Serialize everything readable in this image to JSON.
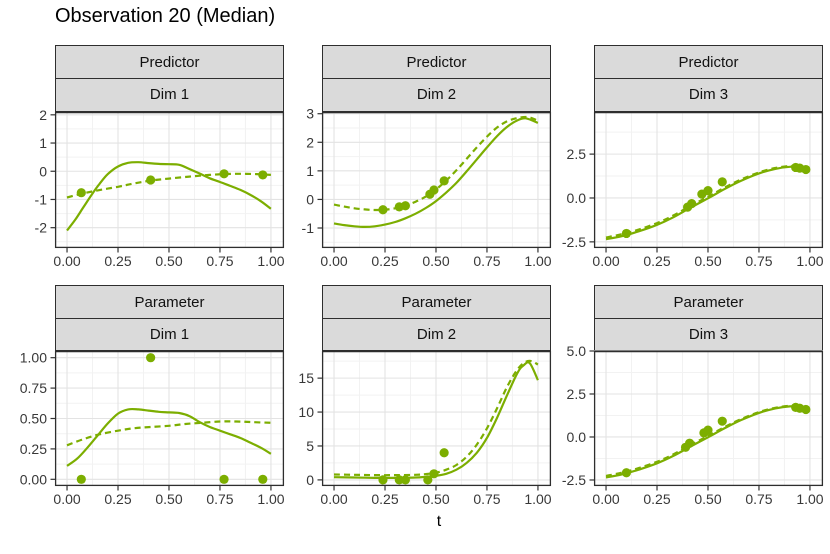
{
  "title": "Observation 20 (Median)",
  "x_axis": {
    "label": "t",
    "tick_values": [
      0,
      0.25,
      0.5,
      0.75,
      1
    ],
    "tick_labels": [
      "0.00",
      "0.25",
      "0.50",
      "0.75",
      "1.00"
    ],
    "range": [
      -0.059,
      1.064
    ]
  },
  "style": {
    "series_color": "#7CAE00",
    "strip_bg": "#DADADA",
    "border_color": "#2E2E2E",
    "grid_major": "#E3E3E3",
    "grid_minor": "#F2F2F2",
    "axis_text_color": "#383838",
    "tick_mark_color": "#333333",
    "panel_bg": "#FFFFFF"
  },
  "chart_data": {
    "type": "line",
    "facet_rows": [
      "Predictor",
      "Parameter"
    ],
    "facet_cols": [
      "Dim 1",
      "Dim 2",
      "Dim 3"
    ],
    "legend": "none",
    "series_styles": [
      "solid-line",
      "dashed-line",
      "points"
    ],
    "facets": [
      {
        "row_label": "Predictor",
        "col_label": "Dim 1",
        "ylim": [
          -2.72,
          2.1
        ],
        "yticks": [
          [
            2,
            "2"
          ],
          [
            1,
            "1"
          ],
          [
            0,
            "0"
          ],
          [
            -1,
            "-1"
          ],
          [
            -2,
            "-2"
          ]
        ],
        "solid": [
          [
            0,
            -2.1
          ],
          [
            0.04,
            -1.72
          ],
          [
            0.08,
            -1.28
          ],
          [
            0.12,
            -0.84
          ],
          [
            0.16,
            -0.44
          ],
          [
            0.2,
            -0.1
          ],
          [
            0.25,
            0.17
          ],
          [
            0.3,
            0.3
          ],
          [
            0.35,
            0.32
          ],
          [
            0.4,
            0.29
          ],
          [
            0.45,
            0.26
          ],
          [
            0.5,
            0.25
          ],
          [
            0.55,
            0.23
          ],
          [
            0.6,
            0.08
          ],
          [
            0.65,
            -0.08
          ],
          [
            0.7,
            -0.25
          ],
          [
            0.75,
            -0.38
          ],
          [
            0.8,
            -0.52
          ],
          [
            0.85,
            -0.66
          ],
          [
            0.9,
            -0.84
          ],
          [
            0.95,
            -1.06
          ],
          [
            1,
            -1.33
          ]
        ],
        "dashed": [
          [
            0,
            -0.93
          ],
          [
            0.07,
            -0.8
          ],
          [
            0.15,
            -0.68
          ],
          [
            0.25,
            -0.55
          ],
          [
            0.33,
            -0.43
          ],
          [
            0.41,
            -0.33
          ],
          [
            0.5,
            -0.26
          ],
          [
            0.6,
            -0.19
          ],
          [
            0.7,
            -0.13
          ],
          [
            0.77,
            -0.1
          ],
          [
            0.85,
            -0.09
          ],
          [
            0.93,
            -0.1
          ],
          [
            1,
            -0.13
          ]
        ],
        "points": [
          [
            0.07,
            -0.76
          ],
          [
            0.41,
            -0.31
          ],
          [
            0.77,
            -0.09
          ],
          [
            0.96,
            -0.13
          ]
        ]
      },
      {
        "row_label": "Predictor",
        "col_label": "Dim 2",
        "ylim": [
          -1.7,
          3.06
        ],
        "yticks": [
          [
            3,
            "3"
          ],
          [
            2,
            "2"
          ],
          [
            1,
            "1"
          ],
          [
            0,
            "0"
          ],
          [
            -1,
            "-1"
          ]
        ],
        "solid": [
          [
            0,
            -0.84
          ],
          [
            0.05,
            -0.9
          ],
          [
            0.1,
            -0.94
          ],
          [
            0.15,
            -0.96
          ],
          [
            0.2,
            -0.94
          ],
          [
            0.25,
            -0.88
          ],
          [
            0.3,
            -0.79
          ],
          [
            0.35,
            -0.66
          ],
          [
            0.4,
            -0.5
          ],
          [
            0.45,
            -0.3
          ],
          [
            0.5,
            -0.06
          ],
          [
            0.55,
            0.24
          ],
          [
            0.6,
            0.58
          ],
          [
            0.65,
            0.98
          ],
          [
            0.7,
            1.4
          ],
          [
            0.75,
            1.82
          ],
          [
            0.8,
            2.22
          ],
          [
            0.85,
            2.55
          ],
          [
            0.9,
            2.77
          ],
          [
            0.94,
            2.84
          ],
          [
            1,
            2.68
          ]
        ],
        "dashed": [
          [
            0,
            -0.18
          ],
          [
            0.05,
            -0.25
          ],
          [
            0.1,
            -0.31
          ],
          [
            0.15,
            -0.35
          ],
          [
            0.2,
            -0.37
          ],
          [
            0.25,
            -0.36
          ],
          [
            0.3,
            -0.31
          ],
          [
            0.35,
            -0.22
          ],
          [
            0.4,
            -0.08
          ],
          [
            0.45,
            0.1
          ],
          [
            0.5,
            0.35
          ],
          [
            0.55,
            0.66
          ],
          [
            0.6,
            1.02
          ],
          [
            0.65,
            1.42
          ],
          [
            0.7,
            1.82
          ],
          [
            0.75,
            2.2
          ],
          [
            0.8,
            2.52
          ],
          [
            0.85,
            2.74
          ],
          [
            0.9,
            2.85
          ],
          [
            0.95,
            2.88
          ],
          [
            1,
            2.76
          ]
        ],
        "points": [
          [
            0.24,
            -0.36
          ],
          [
            0.32,
            -0.26
          ],
          [
            0.35,
            -0.22
          ],
          [
            0.47,
            0.18
          ],
          [
            0.49,
            0.33
          ],
          [
            0.54,
            0.65
          ]
        ]
      },
      {
        "row_label": "Predictor",
        "col_label": "Dim 3",
        "ylim": [
          -2.85,
          4.9
        ],
        "yticks": [
          [
            2.5,
            "2.5"
          ],
          [
            0,
            "0.0"
          ],
          [
            -2.5,
            "-2.5"
          ]
        ],
        "solid": [
          [
            0,
            -2.35
          ],
          [
            0.08,
            -2.17
          ],
          [
            0.16,
            -1.9
          ],
          [
            0.25,
            -1.53
          ],
          [
            0.33,
            -1.1
          ],
          [
            0.41,
            -0.58
          ],
          [
            0.5,
            -0.02
          ],
          [
            0.58,
            0.5
          ],
          [
            0.66,
            0.97
          ],
          [
            0.75,
            1.4
          ],
          [
            0.83,
            1.66
          ],
          [
            0.9,
            1.78
          ],
          [
            0.95,
            1.78
          ],
          [
            1,
            1.65
          ]
        ],
        "dashed": [
          [
            0,
            -2.25
          ],
          [
            0.08,
            -2.06
          ],
          [
            0.16,
            -1.8
          ],
          [
            0.25,
            -1.43
          ],
          [
            0.33,
            -1
          ],
          [
            0.41,
            -0.48
          ],
          [
            0.5,
            0.07
          ],
          [
            0.58,
            0.58
          ],
          [
            0.66,
            1.04
          ],
          [
            0.75,
            1.46
          ],
          [
            0.83,
            1.71
          ],
          [
            0.9,
            1.82
          ],
          [
            0.95,
            1.81
          ],
          [
            1,
            1.68
          ]
        ],
        "points": [
          [
            0.1,
            -2.02
          ],
          [
            0.4,
            -0.52
          ],
          [
            0.42,
            -0.32
          ],
          [
            0.47,
            0.22
          ],
          [
            0.5,
            0.42
          ],
          [
            0.57,
            0.92
          ],
          [
            0.93,
            1.74
          ],
          [
            0.95,
            1.7
          ],
          [
            0.98,
            1.62
          ]
        ]
      },
      {
        "row_label": "Parameter",
        "col_label": "Dim 1",
        "ylim": [
          -0.055,
          1.055
        ],
        "yticks": [
          [
            1,
            "1.00"
          ],
          [
            0.75,
            "0.75"
          ],
          [
            0.5,
            "0.50"
          ],
          [
            0.25,
            "0.25"
          ],
          [
            0,
            "0.00"
          ]
        ],
        "solid": [
          [
            0,
            0.11
          ],
          [
            0.05,
            0.17
          ],
          [
            0.1,
            0.26
          ],
          [
            0.15,
            0.36
          ],
          [
            0.2,
            0.46
          ],
          [
            0.25,
            0.54
          ],
          [
            0.3,
            0.575
          ],
          [
            0.35,
            0.575
          ],
          [
            0.4,
            0.565
          ],
          [
            0.45,
            0.555
          ],
          [
            0.5,
            0.55
          ],
          [
            0.55,
            0.545
          ],
          [
            0.6,
            0.52
          ],
          [
            0.65,
            0.47
          ],
          [
            0.7,
            0.43
          ],
          [
            0.75,
            0.4
          ],
          [
            0.8,
            0.37
          ],
          [
            0.85,
            0.34
          ],
          [
            0.9,
            0.3
          ],
          [
            0.95,
            0.26
          ],
          [
            1,
            0.21
          ]
        ],
        "dashed": [
          [
            0,
            0.28
          ],
          [
            0.08,
            0.33
          ],
          [
            0.16,
            0.37
          ],
          [
            0.25,
            0.4
          ],
          [
            0.33,
            0.42
          ],
          [
            0.41,
            0.43
          ],
          [
            0.5,
            0.44
          ],
          [
            0.58,
            0.455
          ],
          [
            0.66,
            0.465
          ],
          [
            0.75,
            0.475
          ],
          [
            0.83,
            0.475
          ],
          [
            0.91,
            0.47
          ],
          [
            1,
            0.465
          ]
        ],
        "points": [
          [
            0.07,
            0
          ],
          [
            0.41,
            1
          ],
          [
            0.77,
            0
          ],
          [
            0.96,
            0
          ]
        ]
      },
      {
        "row_label": "Parameter",
        "col_label": "Dim 2",
        "ylim": [
          -0.9,
          19.0
        ],
        "yticks": [
          [
            15,
            "15"
          ],
          [
            10,
            "10"
          ],
          [
            5,
            "5"
          ],
          [
            0,
            "0"
          ]
        ],
        "solid": [
          [
            0,
            0.4
          ],
          [
            0.1,
            0.35
          ],
          [
            0.2,
            0.3
          ],
          [
            0.3,
            0.3
          ],
          [
            0.4,
            0.35
          ],
          [
            0.45,
            0.45
          ],
          [
            0.5,
            0.6
          ],
          [
            0.55,
            0.9
          ],
          [
            0.6,
            1.5
          ],
          [
            0.65,
            2.5
          ],
          [
            0.7,
            4
          ],
          [
            0.75,
            6.2
          ],
          [
            0.8,
            9.2
          ],
          [
            0.85,
            12.6
          ],
          [
            0.9,
            15.8
          ],
          [
            0.93,
            16.9
          ],
          [
            0.96,
            17.2
          ],
          [
            1,
            14.7
          ]
        ],
        "dashed": [
          [
            0,
            0.8
          ],
          [
            0.1,
            0.75
          ],
          [
            0.2,
            0.7
          ],
          [
            0.3,
            0.7
          ],
          [
            0.4,
            0.75
          ],
          [
            0.45,
            0.85
          ],
          [
            0.5,
            1.05
          ],
          [
            0.55,
            1.5
          ],
          [
            0.6,
            2.2
          ],
          [
            0.65,
            3.4
          ],
          [
            0.7,
            5.2
          ],
          [
            0.75,
            7.6
          ],
          [
            0.8,
            10.6
          ],
          [
            0.85,
            13.8
          ],
          [
            0.9,
            16.3
          ],
          [
            0.94,
            17.4
          ],
          [
            0.97,
            17.5
          ],
          [
            1,
            17
          ]
        ],
        "points": [
          [
            0.24,
            0
          ],
          [
            0.32,
            0
          ],
          [
            0.35,
            0
          ],
          [
            0.46,
            0
          ],
          [
            0.49,
            0.9
          ],
          [
            0.54,
            4
          ]
        ]
      },
      {
        "row_label": "Parameter",
        "col_label": "Dim 3",
        "ylim": [
          -2.85,
          5.0
        ],
        "yticks": [
          [
            5,
            "5.0"
          ],
          [
            2.5,
            "2.5"
          ],
          [
            0,
            "0.0"
          ],
          [
            -2.5,
            "-2.5"
          ]
        ],
        "solid": [
          [
            0,
            -2.35
          ],
          [
            0.08,
            -2.17
          ],
          [
            0.16,
            -1.9
          ],
          [
            0.25,
            -1.53
          ],
          [
            0.33,
            -1.1
          ],
          [
            0.41,
            -0.58
          ],
          [
            0.5,
            -0.02
          ],
          [
            0.58,
            0.5
          ],
          [
            0.66,
            0.97
          ],
          [
            0.75,
            1.4
          ],
          [
            0.83,
            1.66
          ],
          [
            0.9,
            1.78
          ],
          [
            0.95,
            1.77
          ],
          [
            1,
            1.62
          ]
        ],
        "dashed": [
          [
            0,
            -2.26
          ],
          [
            0.08,
            -2.07
          ],
          [
            0.16,
            -1.81
          ],
          [
            0.25,
            -1.44
          ],
          [
            0.33,
            -1.01
          ],
          [
            0.41,
            -0.49
          ],
          [
            0.5,
            0.06
          ],
          [
            0.58,
            0.57
          ],
          [
            0.66,
            1.03
          ],
          [
            0.75,
            1.45
          ],
          [
            0.83,
            1.7
          ],
          [
            0.9,
            1.81
          ],
          [
            0.95,
            1.8
          ],
          [
            1,
            1.67
          ]
        ],
        "points": [
          [
            0.1,
            -2.08
          ],
          [
            0.39,
            -0.6
          ],
          [
            0.41,
            -0.36
          ],
          [
            0.48,
            0.24
          ],
          [
            0.5,
            0.4
          ],
          [
            0.57,
            0.92
          ],
          [
            0.93,
            1.72
          ],
          [
            0.95,
            1.67
          ],
          [
            0.98,
            1.6
          ]
        ]
      }
    ]
  }
}
